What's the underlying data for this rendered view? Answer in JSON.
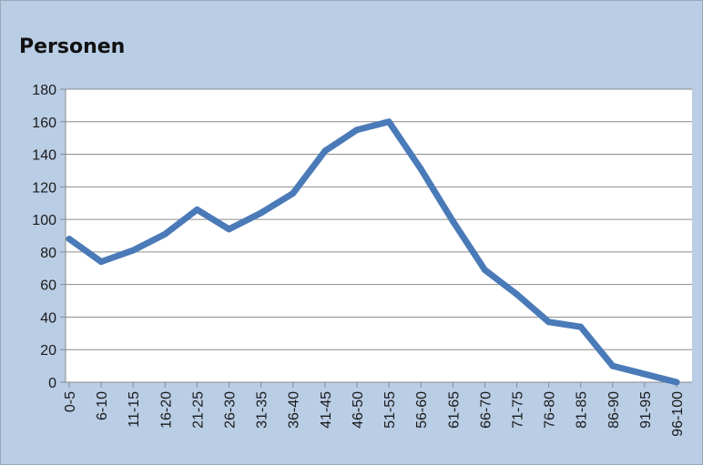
{
  "chart_data": {
    "type": "line",
    "title": "Personen",
    "xlabel": "",
    "ylabel": "",
    "categories": [
      "0-5",
      "6-10",
      "11-15",
      "16-20",
      "21-25",
      "26-30",
      "31-35",
      "36-40",
      "41-45",
      "46-50",
      "51-55",
      "56-60",
      "61-65",
      "66-70",
      "71-75",
      "76-80",
      "81-85",
      "86-90",
      "91-95",
      "96-100"
    ],
    "series": [
      {
        "values": [
          88,
          74,
          81,
          91,
          106,
          94,
          104,
          116,
          142,
          155,
          160,
          131,
          99,
          69,
          54,
          37,
          34,
          10,
          5,
          0
        ]
      }
    ],
    "ylim": [
      0,
      180
    ],
    "yticks": [
      0,
      20,
      40,
      60,
      80,
      100,
      120,
      140,
      160,
      180
    ],
    "grid": true,
    "legend": "none",
    "colors": {
      "background": "#b9cde5",
      "plot_area": "#ffffff",
      "line": "#4a7ab8",
      "gridline": "#8c8c8c",
      "axis": "#8c8c8c"
    }
  }
}
